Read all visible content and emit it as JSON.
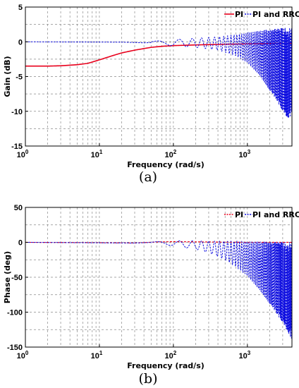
{
  "chart_data": [
    {
      "type": "line",
      "caption": "(a)",
      "xlabel": "Frequency  (rad/s)",
      "ylabel": "Gain  (dB)",
      "xscale": "log",
      "xlim": [
        1,
        4000
      ],
      "ylim": [
        -15,
        5
      ],
      "xticks": [
        {
          "base": "10",
          "exp": "0",
          "value": 1
        },
        {
          "base": "10",
          "exp": "1",
          "value": 10
        },
        {
          "base": "10",
          "exp": "2",
          "value": 100
        },
        {
          "base": "10",
          "exp": "3",
          "value": 1000
        }
      ],
      "yticks": [
        {
          "label": "5",
          "value": 5
        },
        {
          "label": "0",
          "value": 0
        },
        {
          "label": "-5",
          "value": -5
        },
        {
          "label": "-10",
          "value": -10
        },
        {
          "label": "-15",
          "value": -15
        }
      ],
      "grid": true,
      "legend_position": "top-right",
      "series": [
        {
          "name": "PI",
          "color": "#e8001c",
          "style": "solid",
          "points": [
            [
              1,
              -3.5
            ],
            [
              2,
              -3.5
            ],
            [
              3,
              -3.45
            ],
            [
              5,
              -3.3
            ],
            [
              7,
              -3.1
            ],
            [
              10,
              -2.6
            ],
            [
              15,
              -2.0
            ],
            [
              20,
              -1.6
            ],
            [
              30,
              -1.2
            ],
            [
              50,
              -0.8
            ],
            [
              70,
              -0.65
            ],
            [
              100,
              -0.55
            ],
            [
              200,
              -0.45
            ],
            [
              500,
              -0.35
            ],
            [
              1000,
              -0.3
            ],
            [
              2000,
              -0.25
            ],
            [
              4000,
              -0.2
            ]
          ]
        },
        {
          "name": "PI and RRC",
          "color": "#1010e0",
          "style": "dashed",
          "baseline": [
            [
              1,
              0
            ],
            [
              20,
              -0.05
            ],
            [
              40,
              -0.15
            ],
            [
              55,
              -0.1
            ],
            [
              65,
              0.1
            ],
            [
              80,
              -0.3
            ],
            [
              100,
              -0.35
            ],
            [
              200,
              -0.4
            ],
            [
              500,
              -0.45
            ],
            [
              1000,
              -0.5
            ],
            [
              4000,
              -0.5
            ]
          ],
          "envelope_upper": [
            [
              50,
              0.05
            ],
            [
              100,
              0.3
            ],
            [
              200,
              0.5
            ],
            [
              400,
              0.7
            ],
            [
              700,
              1.0
            ],
            [
              1000,
              1.3
            ],
            [
              1500,
              1.6
            ],
            [
              2000,
              1.8
            ],
            [
              3000,
              2.0
            ],
            [
              4000,
              2.0
            ]
          ],
          "envelope_lower": [
            [
              50,
              -0.2
            ],
            [
              100,
              -0.6
            ],
            [
              200,
              -0.8
            ],
            [
              400,
              -1.2
            ],
            [
              700,
              -2.0
            ],
            [
              1000,
              -3.0
            ],
            [
              1500,
              -5.0
            ],
            [
              2000,
              -7.0
            ],
            [
              2500,
              -8.5
            ],
            [
              3000,
              -10.0
            ],
            [
              3500,
              -11.0
            ],
            [
              3800,
              -10.9
            ],
            [
              4000,
              -9.8
            ]
          ]
        }
      ],
      "legend": [
        {
          "label": "PI"
        },
        {
          "label": "PI and RRC"
        }
      ]
    },
    {
      "type": "line",
      "caption": "(b)",
      "xlabel": "Frequency  (rad/s)",
      "ylabel": "Phase  (deg)",
      "xscale": "log",
      "xlim": [
        1,
        4000
      ],
      "ylim": [
        -150,
        50
      ],
      "xticks": [
        {
          "base": "10",
          "exp": "0",
          "value": 1
        },
        {
          "base": "10",
          "exp": "1",
          "value": 10
        },
        {
          "base": "10",
          "exp": "2",
          "value": 100
        },
        {
          "base": "10",
          "exp": "3",
          "value": 1000
        }
      ],
      "yticks": [
        {
          "label": "50",
          "value": 50
        },
        {
          "label": "0",
          "value": 0
        },
        {
          "label": "-50",
          "value": -50
        },
        {
          "label": "-100",
          "value": -100
        },
        {
          "label": "-150",
          "value": -150
        }
      ],
      "grid": true,
      "legend_position": "top-right",
      "series": [
        {
          "name": "PI",
          "color": "#e8001c",
          "style": "dashed",
          "points": [
            [
              1,
              0
            ],
            [
              10,
              -0.5
            ],
            [
              30,
              -1.0
            ],
            [
              60,
              0.5
            ],
            [
              100,
              1.0
            ],
            [
              300,
              0.5
            ],
            [
              1000,
              0
            ],
            [
              4000,
              0
            ]
          ]
        },
        {
          "name": "PI and RRC",
          "color": "#1010e0",
          "style": "dashed",
          "baseline": [
            [
              1,
              0
            ],
            [
              30,
              -1
            ],
            [
              55,
              0
            ],
            [
              65,
              1
            ],
            [
              80,
              -2
            ],
            [
              100,
              -3
            ],
            [
              200,
              -5
            ],
            [
              500,
              -5
            ],
            [
              1000,
              -5
            ],
            [
              4000,
              -5
            ]
          ],
          "envelope_upper": [
            [
              50,
              0.5
            ],
            [
              100,
              2
            ],
            [
              200,
              2
            ],
            [
              500,
              1.5
            ],
            [
              1000,
              1
            ],
            [
              2000,
              1
            ],
            [
              4000,
              0
            ]
          ],
          "envelope_lower": [
            [
              50,
              -1
            ],
            [
              100,
              -5
            ],
            [
              200,
              -10
            ],
            [
              300,
              -15
            ],
            [
              500,
              -25
            ],
            [
              700,
              -35
            ],
            [
              1000,
              -48
            ],
            [
              1500,
              -70
            ],
            [
              2000,
              -88
            ],
            [
              2500,
              -103
            ],
            [
              3000,
              -115
            ],
            [
              3500,
              -128
            ],
            [
              4000,
              -140
            ]
          ]
        }
      ],
      "legend": [
        {
          "label": "PI"
        },
        {
          "label": "PI and RRC"
        }
      ]
    }
  ]
}
